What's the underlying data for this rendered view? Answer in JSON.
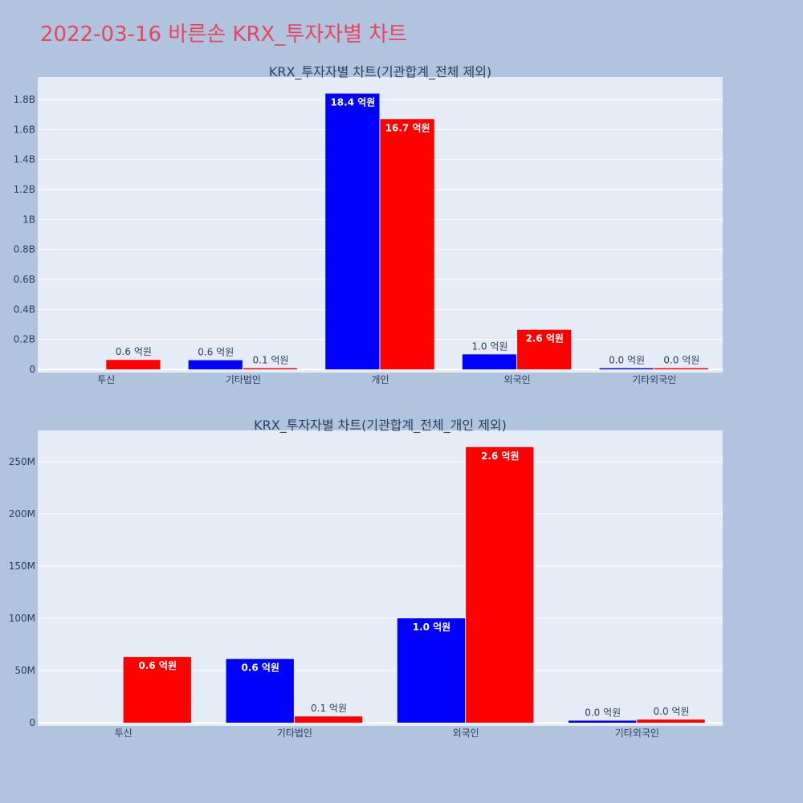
{
  "title": "2022-03-16 바른손 KRX_투자자별 차트",
  "colors": {
    "buy": "#0000ff",
    "sell": "#ff0000",
    "title": "#e8465a"
  },
  "chart_data": [
    {
      "type": "bar",
      "title": "KRX_투자자별 차트(기관합계_전체 제외)",
      "categories": [
        "투신",
        "기타법인",
        "개인",
        "외국인",
        "기타외국인"
      ],
      "series": [
        {
          "color": "blue",
          "values": [
            0,
            61000000,
            1840000000,
            100000000,
            2000000
          ],
          "labels": [
            "",
            "0.6 억원",
            "18.4 억원",
            "1.0 억원",
            "0.0 억원"
          ]
        },
        {
          "color": "red",
          "values": [
            63000000,
            6000000,
            1670000000,
            264000000,
            3000000
          ],
          "labels": [
            "0.6 억원",
            "0.1 억원",
            "16.7 억원",
            "2.6 억원",
            "0.0 억원"
          ]
        }
      ],
      "ylim": [
        0,
        1950000000
      ],
      "yticks": [
        0,
        200000000,
        400000000,
        600000000,
        800000000,
        1000000000,
        1200000000,
        1400000000,
        1600000000,
        1800000000
      ],
      "ytick_labels": [
        "0",
        "0.2B",
        "0.4B",
        "0.6B",
        "0.8B",
        "1B",
        "1.2B",
        "1.4B",
        "1.6B",
        "1.8B"
      ],
      "grid": true
    },
    {
      "type": "bar",
      "title": "KRX_투자자별 차트(기관합계_전체_개인 제외)",
      "categories": [
        "투신",
        "기타법인",
        "외국인",
        "기타외국인"
      ],
      "series": [
        {
          "color": "blue",
          "values": [
            0,
            61000000,
            100000000,
            2000000
          ],
          "labels": [
            "",
            "0.6 억원",
            "1.0 억원",
            "0.0 억원"
          ]
        },
        {
          "color": "red",
          "values": [
            63000000,
            6000000,
            264000000,
            3000000
          ],
          "labels": [
            "0.6 억원",
            "0.1 억원",
            "2.6 억원",
            "0.0 억원"
          ]
        }
      ],
      "ylim": [
        0,
        280000000
      ],
      "yticks": [
        0,
        50000000,
        100000000,
        150000000,
        200000000,
        250000000
      ],
      "ytick_labels": [
        "0",
        "50M",
        "100M",
        "150M",
        "200M",
        "250M"
      ],
      "grid": true
    }
  ]
}
